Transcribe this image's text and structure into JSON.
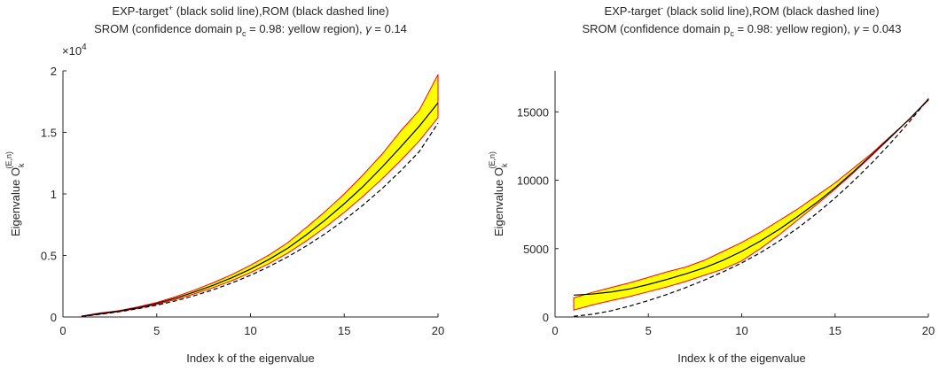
{
  "colors": {
    "band": "#ffff00",
    "band_edge": "#ff0000",
    "line": "#000000",
    "axis": "#262626"
  },
  "chart_data": [
    {
      "type": "area",
      "title_lines": [
        {
          "pre": "EXP-target",
          "sup": "+",
          "post": " (black solid line),ROM (black dashed line)"
        },
        {
          "a": "SROM (confidence domain p",
          "sub": "c",
          "b": " = 0.98: yellow region), ",
          "gamma": "γ",
          "c": " = 0.14"
        }
      ],
      "xlabel": "Index k of the eigenvalue",
      "ylabel_main": "Eigenvalue O",
      "ylabel_sub": "k",
      "ylabel_sup": "(E,n)",
      "xlim": [
        0,
        20
      ],
      "ylim": [
        0,
        20000
      ],
      "xticks": [
        0,
        5,
        10,
        15,
        20
      ],
      "xtick_labels": [
        "0",
        "5",
        "10",
        "15",
        "20"
      ],
      "yticks": [
        0,
        5000,
        10000,
        15000,
        20000
      ],
      "ytick_labels": [
        "0",
        "0.5",
        "1",
        "1.5",
        "2"
      ],
      "exponent_label": "×10",
      "exponent_power": "4",
      "x": [
        1,
        2,
        3,
        4,
        5,
        6,
        7,
        8,
        9,
        10,
        11,
        12,
        13,
        14,
        15,
        16,
        17,
        18,
        19,
        20
      ],
      "series": [
        {
          "role": "upper_band",
          "values": [
            80,
            330,
            520,
            820,
            1180,
            1650,
            2180,
            2780,
            3440,
            4200,
            5050,
            6050,
            7300,
            8600,
            10000,
            11550,
            13200,
            15100,
            16800,
            19700
          ]
        },
        {
          "role": "lower_band",
          "values": [
            40,
            230,
            440,
            700,
            1020,
            1420,
            1880,
            2380,
            2950,
            3600,
            4350,
            5200,
            6200,
            7300,
            8500,
            9800,
            11200,
            12700,
            14300,
            16200
          ]
        },
        {
          "role": "exp_target",
          "values": [
            60,
            280,
            480,
            760,
            1100,
            1530,
            2030,
            2570,
            3190,
            3890,
            4690,
            5600,
            6700,
            7900,
            9200,
            10600,
            12150,
            13800,
            15500,
            17400
          ]
        },
        {
          "role": "rom",
          "values": [
            40,
            225,
            425,
            670,
            960,
            1310,
            1730,
            2210,
            2760,
            3390,
            4100,
            4900,
            5790,
            6780,
            7880,
            9090,
            10410,
            11860,
            13440,
            15750
          ]
        }
      ]
    },
    {
      "type": "area",
      "title_lines": [
        {
          "pre": "EXP-target",
          "sup": "-",
          "post": " (black solid line),ROM (black dashed line)"
        },
        {
          "a": "SROM (confidence domain p",
          "sub": "c",
          "b": " = 0.98: yellow region), ",
          "gamma": "γ",
          "c": " = 0.043"
        }
      ],
      "xlabel": "Index k of the eigenvalue",
      "ylabel_main": "Eigenvalue O",
      "ylabel_sub": "k",
      "ylabel_sup": "(E,n)",
      "xlim": [
        0,
        20
      ],
      "ylim": [
        0,
        18000
      ],
      "xticks": [
        0,
        5,
        10,
        15,
        20
      ],
      "xtick_labels": [
        "0",
        "5",
        "10",
        "15",
        "20"
      ],
      "yticks": [
        0,
        5000,
        10000,
        15000
      ],
      "ytick_labels": [
        "0",
        "5000",
        "10000",
        "15000"
      ],
      "x": [
        1,
        2,
        3,
        4,
        5,
        6,
        7,
        8,
        9,
        10,
        11,
        12,
        13,
        14,
        15,
        16,
        17,
        18,
        19,
        20
      ],
      "series": [
        {
          "role": "upper_band",
          "values": [
            1400,
            1800,
            2150,
            2500,
            2900,
            3300,
            3650,
            4150,
            4800,
            5450,
            6200,
            7050,
            7900,
            8850,
            9800,
            10900,
            12000,
            13250,
            14450,
            15950
          ]
        },
        {
          "role": "lower_band",
          "values": [
            500,
            880,
            1200,
            1500,
            1850,
            2200,
            2600,
            3050,
            3500,
            4100,
            5000,
            6000,
            7100,
            8200,
            9350,
            10550,
            11850,
            13150,
            14500,
            15850
          ]
        },
        {
          "role": "exp_target",
          "values": [
            1600,
            1680,
            1830,
            2050,
            2380,
            2750,
            3150,
            3600,
            4150,
            4800,
            5550,
            6400,
            7350,
            8350,
            9450,
            10650,
            11900,
            13200,
            14500,
            15900
          ]
        },
        {
          "role": "rom",
          "values": [
            50,
            200,
            450,
            800,
            1200,
            1650,
            2150,
            2700,
            3300,
            3950,
            4700,
            5550,
            6500,
            7550,
            8700,
            9950,
            11300,
            12750,
            14300,
            15950
          ]
        }
      ]
    }
  ]
}
